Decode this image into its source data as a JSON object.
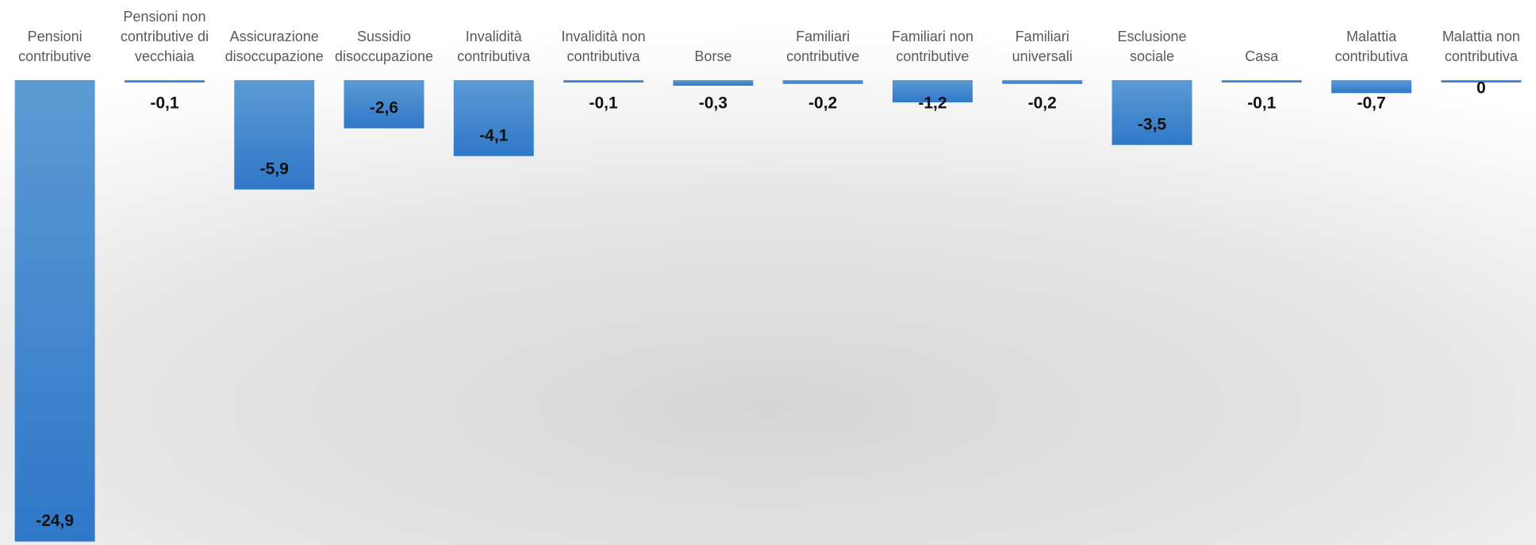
{
  "chart_data": {
    "type": "bar",
    "categories": [
      "Pensioni contributive",
      "Pensioni non contributive di vecchiaia",
      "Assicurazione disoccupazione",
      "Sussidio disoccupazione",
      "Invalidità contributiva",
      "Invalidità non contributiva",
      "Borse",
      "Familiari contributive",
      "Familiari non contributive",
      "Familiari universali",
      "Esclusione sociale",
      "Casa",
      "Malattia contributiva",
      "Malattia non contributiva"
    ],
    "values": [
      -24.9,
      -0.1,
      -5.9,
      -2.6,
      -4.1,
      -0.1,
      -0.3,
      -0.2,
      -1.2,
      -0.2,
      -3.5,
      -0.1,
      -0.7,
      0
    ],
    "value_labels": [
      "-24,9",
      "-0,1",
      "-5,9",
      "-2,6",
      "-4,1",
      "-0,1",
      "-0,3",
      "-0,2",
      "-1,2",
      "-0,2",
      "-3,5",
      "-0,1",
      "-0,7",
      "0"
    ],
    "color": "#4a8dd6",
    "ylim": [
      -25,
      0
    ]
  }
}
